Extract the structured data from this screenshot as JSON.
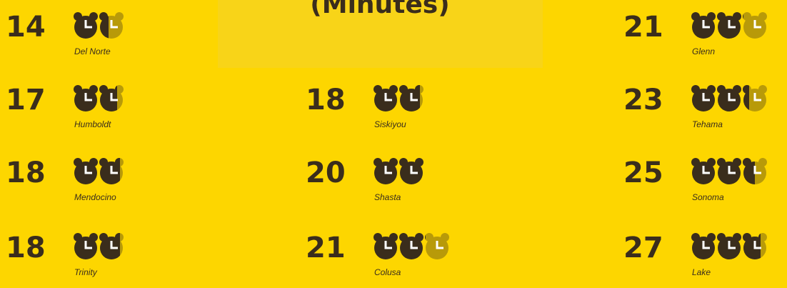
{
  "chart_data": {
    "type": "pictograph",
    "title": "(Minutes)",
    "categories": [
      "Del Norte",
      "Humboldt",
      "Mendocino",
      "Trinity",
      "Siskiyou",
      "Shasta",
      "Colusa",
      "Glenn",
      "Tehama",
      "Sonoma",
      "Lake"
    ],
    "values": [
      14,
      17,
      18,
      18,
      18,
      20,
      21,
      21,
      23,
      25,
      27
    ],
    "color": "#3a2d1c"
  }
}
